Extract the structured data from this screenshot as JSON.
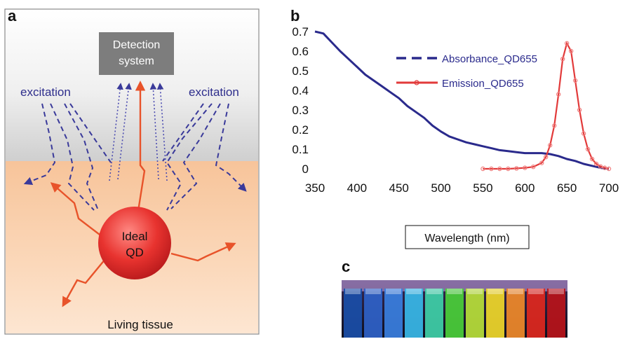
{
  "panel_a": {
    "letter": "a",
    "detection_line1": "Detection",
    "detection_line2": "system",
    "excitation_left": "excitation",
    "excitation_right": "excitation",
    "qd_line1": "Ideal",
    "qd_line2": "QD",
    "tissue_label": "Living tissue",
    "colors": {
      "arrow": "#e8532a",
      "dashed": "#3a3a9a",
      "box": "#7d7d7d",
      "qd": "#e83a36",
      "tissue": "#f9c9a0"
    }
  },
  "panel_c": {
    "letter": "c",
    "vial_colors": [
      "#1a4ea8",
      "#2f62c8",
      "#3a7fe0",
      "#38b8e8",
      "#3fd0a8",
      "#4bcf3a",
      "#b8e03a",
      "#f0d82a",
      "#f08a2a",
      "#e0281e",
      "#b8141a"
    ]
  },
  "chart_data": {
    "letter": "b",
    "type": "line",
    "xlabel": "Wavelength (nm)",
    "ylabel": "",
    "xlim": [
      350,
      700
    ],
    "ylim": [
      0,
      0.7
    ],
    "x_ticks": [
      "350",
      "400",
      "450",
      "500",
      "550",
      "600",
      "650",
      "700"
    ],
    "y_ticks": [
      "0",
      "0.1",
      "0.2",
      "0.3",
      "0.4",
      "0.5",
      "0.6",
      "0.7"
    ],
    "legend_position": "top-right",
    "series": [
      {
        "name": "Absorbance_QD655",
        "style": "dashed",
        "color": "#2a2a8c",
        "x": [
          350,
          360,
          370,
          380,
          390,
          400,
          410,
          420,
          430,
          440,
          450,
          460,
          470,
          480,
          490,
          500,
          510,
          520,
          530,
          540,
          550,
          560,
          570,
          580,
          590,
          600,
          610,
          620,
          630,
          640,
          650,
          660,
          670,
          680,
          690,
          700
        ],
        "y": [
          0.7,
          0.69,
          0.645,
          0.6,
          0.56,
          0.52,
          0.48,
          0.45,
          0.42,
          0.39,
          0.36,
          0.32,
          0.29,
          0.26,
          0.22,
          0.19,
          0.165,
          0.15,
          0.135,
          0.125,
          0.115,
          0.105,
          0.095,
          0.09,
          0.085,
          0.08,
          0.08,
          0.08,
          0.075,
          0.065,
          0.05,
          0.04,
          0.025,
          0.015,
          0.005,
          0.0
        ]
      },
      {
        "name": "Emission_QD655",
        "style": "solid-with-markers",
        "color": "#e23a3a",
        "x": [
          550,
          560,
          570,
          580,
          590,
          600,
          610,
          620,
          625,
          630,
          635,
          640,
          645,
          650,
          655,
          660,
          665,
          670,
          675,
          680,
          685,
          690,
          695,
          700
        ],
        "y": [
          0.0,
          0.0,
          0.0,
          0.0,
          0.002,
          0.005,
          0.01,
          0.03,
          0.06,
          0.12,
          0.22,
          0.38,
          0.56,
          0.64,
          0.6,
          0.45,
          0.3,
          0.18,
          0.1,
          0.05,
          0.025,
          0.012,
          0.005,
          0.0
        ]
      }
    ]
  }
}
